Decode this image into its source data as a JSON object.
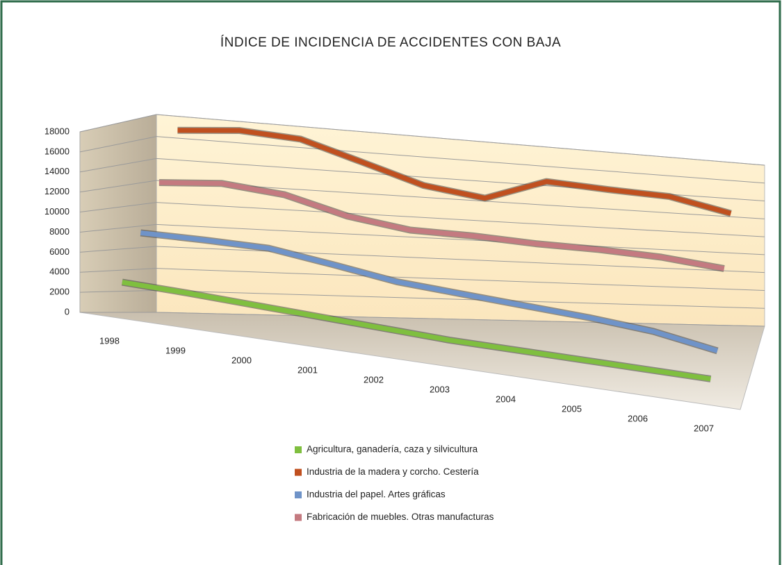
{
  "chart_data": {
    "type": "line3d",
    "title": "ÍNDICE DE INCIDENCIA DE ACCIDENTES CON BAJA",
    "categories": [
      "1998",
      "1999",
      "2000",
      "2001",
      "2002",
      "2003",
      "2004",
      "2005",
      "2006",
      "2007"
    ],
    "series": [
      {
        "name": "Agricultura, ganadería, caza y silvicultura",
        "color": "#7fbf3f",
        "values": [
          3400,
          3200,
          2900,
          2600,
          2300,
          2000,
          1900,
          1800,
          1700,
          1600
        ]
      },
      {
        "name": "Industria de la madera y corcho. Cestería",
        "color": "#c0501f",
        "values": [
          17000,
          17500,
          17200,
          15500,
          13700,
          12900,
          15100,
          14800,
          14600,
          13300
        ]
      },
      {
        "name": "Industria del papel. Artes gráficas",
        "color": "#6f93c8",
        "values": [
          8000,
          8000,
          7900,
          7000,
          6000,
          5500,
          5000,
          4500,
          3800,
          2500
        ]
      },
      {
        "name": "Fabricación de muebles. Otras manufacturas",
        "color": "#c47a80",
        "values": [
          12500,
          13000,
          12500,
          11000,
          10200,
          10200,
          10000,
          10000,
          9800,
          9200
        ]
      }
    ],
    "ylim": [
      0,
      18000
    ],
    "yticks": [
      0,
      2000,
      4000,
      6000,
      8000,
      10000,
      12000,
      14000,
      16000,
      18000
    ],
    "grid": true
  }
}
